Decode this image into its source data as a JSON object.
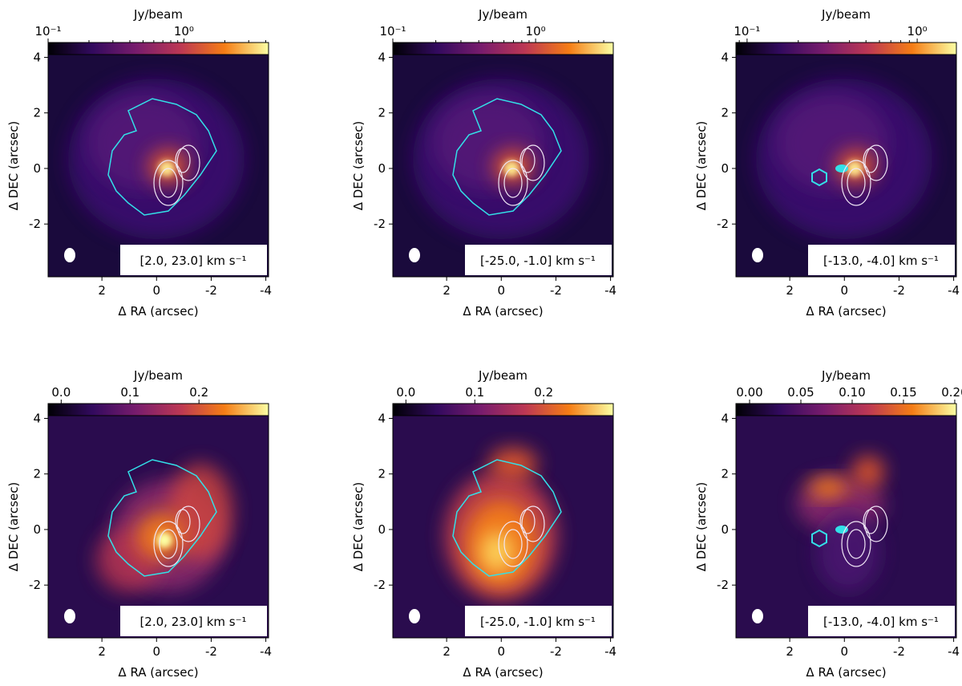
{
  "chart_data": [
    {
      "type": "image",
      "colorbar_label": "Jy/beam",
      "colorbar_scale": "log",
      "clim": [
        0.1,
        4.2
      ],
      "cticks": [
        {
          "value": 0.1,
          "label": "10⁻¹"
        },
        {
          "value": 1,
          "label": "10⁰"
        }
      ],
      "xlabel": "Δ RA (arcsec)",
      "ylabel": "Δ DEC (arcsec)",
      "xlim": [
        3.97,
        -4.1
      ],
      "ylim": [
        -3.9,
        4.1
      ],
      "xticks": [
        2,
        0,
        -2,
        -4
      ],
      "yticks": [
        -2,
        0,
        2,
        4
      ],
      "annotation": "[2.0, 23.0] km s⁻¹"
    },
    {
      "type": "image",
      "colorbar_label": "Jy/beam",
      "colorbar_scale": "log",
      "clim": [
        0.1,
        3.5
      ],
      "cticks": [
        {
          "value": 0.1,
          "label": "10⁻¹"
        },
        {
          "value": 1,
          "label": "10⁰"
        }
      ],
      "xlabel": "Δ RA (arcsec)",
      "ylabel": "Δ DEC (arcsec)",
      "xlim": [
        3.97,
        -4.1
      ],
      "ylim": [
        -3.9,
        4.1
      ],
      "xticks": [
        2,
        0,
        -2,
        -4
      ],
      "yticks": [
        -2,
        0,
        2,
        4
      ],
      "annotation": "[-25.0, -1.0] km s⁻¹"
    },
    {
      "type": "image",
      "colorbar_label": "Jy/beam",
      "colorbar_scale": "log",
      "clim": [
        0.086,
        1.7
      ],
      "cticks": [
        {
          "value": 0.1,
          "label": "10⁻¹"
        },
        {
          "value": 1,
          "label": "10⁰"
        }
      ],
      "xlabel": "Δ RA (arcsec)",
      "ylabel": "Δ DEC (arcsec)",
      "xlim": [
        3.97,
        -4.1
      ],
      "ylim": [
        -3.9,
        4.1
      ],
      "xticks": [
        2,
        0,
        -2,
        -4
      ],
      "yticks": [
        -2,
        0,
        2,
        4
      ],
      "annotation": "[-13.0, -4.0] km s⁻¹"
    },
    {
      "type": "image",
      "colorbar_label": "Jy/beam",
      "colorbar_scale": "linear",
      "clim": [
        -0.019,
        0.301
      ],
      "cticks": [
        {
          "value": 0,
          "label": "0.0"
        },
        0.1,
        0.2
      ],
      "xlabel": "Δ RA (arcsec)",
      "ylabel": "Δ DEC (arcsec)",
      "xlim": [
        3.97,
        -4.1
      ],
      "ylim": [
        -3.9,
        4.1
      ],
      "xticks": [
        2,
        0,
        -2,
        -4
      ],
      "yticks": [
        -2,
        0,
        2,
        4
      ],
      "annotation": "[2.0, 23.0] km s⁻¹"
    },
    {
      "type": "image",
      "colorbar_label": "Jy/beam",
      "colorbar_scale": "linear",
      "clim": [
        -0.019,
        0.301
      ],
      "cticks": [
        {
          "value": 0,
          "label": "0.0"
        },
        0.1,
        0.2
      ],
      "xlabel": "Δ RA (arcsec)",
      "ylabel": "Δ DEC (arcsec)",
      "xlim": [
        3.97,
        -4.1
      ],
      "ylim": [
        -3.9,
        4.1
      ],
      "xticks": [
        2,
        0,
        -2,
        -4
      ],
      "yticks": [
        -2,
        0,
        2,
        4
      ],
      "annotation": "[-25.0, -1.0] km s⁻¹"
    },
    {
      "type": "image",
      "colorbar_label": "Jy/beam",
      "colorbar_scale": "linear",
      "clim": [
        -0.0133,
        0.2016
      ],
      "cticks": [
        {
          "value": 0,
          "label": "0.00"
        },
        0.05,
        {
          "value": 0.1,
          "label": "0.10"
        },
        0.15,
        {
          "value": 0.2,
          "label": "0.20"
        }
      ],
      "xlabel": "Δ RA (arcsec)",
      "ylabel": "Δ DEC (arcsec)",
      "xlim": [
        3.97,
        -4.1
      ],
      "ylim": [
        -3.9,
        4.1
      ],
      "xticks": [
        2,
        0,
        -2,
        -4
      ],
      "yticks": [
        -2,
        0,
        2,
        4
      ],
      "annotation": "[-13.0, -4.0] km s⁻¹"
    }
  ]
}
